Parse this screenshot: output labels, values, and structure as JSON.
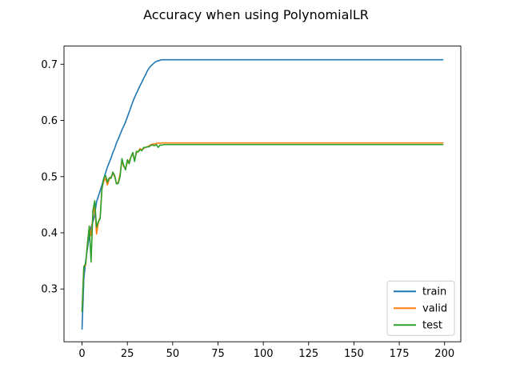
{
  "chart_data": {
    "type": "line",
    "title": "Accuracy when using PolynomialLR",
    "xlabel": "",
    "ylabel": "",
    "xlim": [
      -9.95,
      208.95
    ],
    "ylim": [
      0.2061,
      0.7323
    ],
    "xticks": [
      0,
      25,
      50,
      75,
      100,
      125,
      150,
      175,
      200
    ],
    "yticks": [
      0.3,
      0.4,
      0.5,
      0.6,
      0.7
    ],
    "ytick_labels": [
      "0.3",
      "0.4",
      "0.5",
      "0.6",
      "0.7"
    ],
    "grid": false,
    "legend_position": "lower-right",
    "series": [
      {
        "name": "train",
        "color": "#1f77b4",
        "points": [
          [
            0,
            0.229
          ],
          [
            1,
            0.318
          ],
          [
            2,
            0.35
          ],
          [
            3,
            0.372
          ],
          [
            4,
            0.395
          ],
          [
            5,
            0.41
          ],
          [
            6,
            0.42
          ],
          [
            7,
            0.432
          ],
          [
            8,
            0.455
          ],
          [
            9,
            0.465
          ],
          [
            10,
            0.475
          ],
          [
            11,
            0.485
          ],
          [
            12,
            0.497
          ],
          [
            13,
            0.507
          ],
          [
            14,
            0.517
          ],
          [
            15,
            0.525
          ],
          [
            16,
            0.533
          ],
          [
            17,
            0.543
          ],
          [
            18,
            0.55
          ],
          [
            19,
            0.56
          ],
          [
            20,
            0.567
          ],
          [
            21,
            0.575
          ],
          [
            22,
            0.583
          ],
          [
            23,
            0.59
          ],
          [
            24,
            0.597
          ],
          [
            25,
            0.606
          ],
          [
            26,
            0.615
          ],
          [
            27,
            0.624
          ],
          [
            28,
            0.633
          ],
          [
            29,
            0.641
          ],
          [
            30,
            0.648
          ],
          [
            31,
            0.655
          ],
          [
            32,
            0.662
          ],
          [
            33,
            0.668
          ],
          [
            34,
            0.675
          ],
          [
            35,
            0.681
          ],
          [
            36,
            0.688
          ],
          [
            37,
            0.693
          ],
          [
            38,
            0.697
          ],
          [
            39,
            0.7
          ],
          [
            40,
            0.703
          ],
          [
            41,
            0.705
          ],
          [
            42,
            0.706
          ],
          [
            43,
            0.707
          ],
          [
            44,
            0.708
          ],
          [
            45,
            0.708
          ],
          [
            50,
            0.708
          ],
          [
            100,
            0.708
          ],
          [
            150,
            0.708
          ],
          [
            199,
            0.708
          ]
        ]
      },
      {
        "name": "valid",
        "color": "#ff7f0e",
        "points": [
          [
            0,
            0.262
          ],
          [
            1,
            0.34
          ],
          [
            2,
            0.342
          ],
          [
            3,
            0.382
          ],
          [
            4,
            0.41
          ],
          [
            5,
            0.395
          ],
          [
            6,
            0.43
          ],
          [
            7,
            0.45
          ],
          [
            8,
            0.398
          ],
          [
            9,
            0.418
          ],
          [
            10,
            0.428
          ],
          [
            11,
            0.48
          ],
          [
            12,
            0.492
          ],
          [
            13,
            0.497
          ],
          [
            14,
            0.485
          ],
          [
            15,
            0.495
          ],
          [
            16,
            0.5
          ],
          [
            17,
            0.505
          ],
          [
            18,
            0.5
          ],
          [
            19,
            0.488
          ],
          [
            20,
            0.49
          ],
          [
            21,
            0.505
          ],
          [
            22,
            0.528
          ],
          [
            23,
            0.518
          ],
          [
            24,
            0.515
          ],
          [
            25,
            0.525
          ],
          [
            26,
            0.528
          ],
          [
            27,
            0.535
          ],
          [
            28,
            0.54
          ],
          [
            29,
            0.53
          ],
          [
            30,
            0.542
          ],
          [
            31,
            0.545
          ],
          [
            32,
            0.55
          ],
          [
            33,
            0.548
          ],
          [
            34,
            0.55
          ],
          [
            35,
            0.552
          ],
          [
            36,
            0.553
          ],
          [
            37,
            0.555
          ],
          [
            38,
            0.557
          ],
          [
            39,
            0.558
          ],
          [
            40,
            0.558
          ],
          [
            41,
            0.559
          ],
          [
            42,
            0.56
          ],
          [
            43,
            0.559
          ],
          [
            44,
            0.56
          ],
          [
            45,
            0.56
          ],
          [
            50,
            0.56
          ],
          [
            100,
            0.56
          ],
          [
            150,
            0.56
          ],
          [
            199,
            0.56
          ]
        ]
      },
      {
        "name": "test",
        "color": "#2ca02c",
        "points": [
          [
            0,
            0.26
          ],
          [
            1,
            0.34
          ],
          [
            2,
            0.345
          ],
          [
            3,
            0.38
          ],
          [
            4,
            0.412
          ],
          [
            5,
            0.348
          ],
          [
            6,
            0.44
          ],
          [
            7,
            0.457
          ],
          [
            8,
            0.41
          ],
          [
            9,
            0.42
          ],
          [
            10,
            0.425
          ],
          [
            11,
            0.478
          ],
          [
            12,
            0.497
          ],
          [
            13,
            0.502
          ],
          [
            14,
            0.49
          ],
          [
            15,
            0.498
          ],
          [
            16,
            0.497
          ],
          [
            17,
            0.508
          ],
          [
            18,
            0.502
          ],
          [
            19,
            0.487
          ],
          [
            20,
            0.488
          ],
          [
            21,
            0.5
          ],
          [
            22,
            0.532
          ],
          [
            23,
            0.52
          ],
          [
            24,
            0.512
          ],
          [
            25,
            0.53
          ],
          [
            26,
            0.523
          ],
          [
            27,
            0.535
          ],
          [
            28,
            0.543
          ],
          [
            29,
            0.527
          ],
          [
            30,
            0.545
          ],
          [
            31,
            0.544
          ],
          [
            32,
            0.548
          ],
          [
            33,
            0.546
          ],
          [
            34,
            0.552
          ],
          [
            35,
            0.552
          ],
          [
            36,
            0.553
          ],
          [
            37,
            0.553
          ],
          [
            38,
            0.556
          ],
          [
            39,
            0.556
          ],
          [
            40,
            0.555
          ],
          [
            41,
            0.557
          ],
          [
            42,
            0.552
          ],
          [
            43,
            0.556
          ],
          [
            44,
            0.556
          ],
          [
            45,
            0.557
          ],
          [
            50,
            0.557
          ],
          [
            100,
            0.557
          ],
          [
            150,
            0.557
          ],
          [
            199,
            0.557
          ]
        ]
      }
    ]
  }
}
